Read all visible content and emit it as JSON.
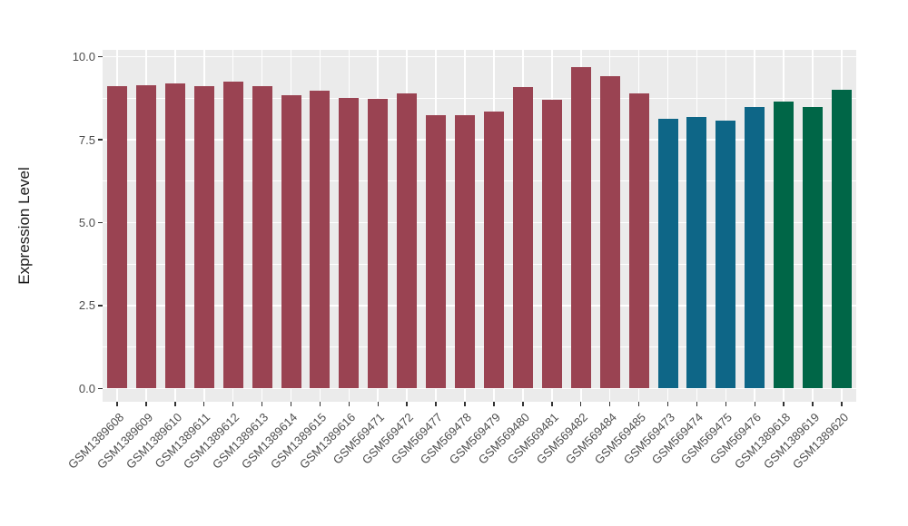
{
  "chart_data": {
    "type": "bar",
    "title": "",
    "ylabel": "Expression Level",
    "xlabel": "",
    "ylim": [
      -0.41,
      10.21
    ],
    "yticks": [
      0,
      2.5,
      5,
      7.5,
      10
    ],
    "ytick_labels": [
      "0.0",
      "2.5",
      "5.0",
      "7.5",
      "10.0"
    ],
    "minor_gridlines": [
      1.25,
      3.75,
      6.25,
      8.75
    ],
    "grid": "white major and minor horizontal lines, white vertical line at each category, on gray panel",
    "legend_position": "none",
    "categories": [
      "GSM1389608",
      "GSM1389609",
      "GSM1389610",
      "GSM1389611",
      "GSM1389612",
      "GSM1389613",
      "GSM1389614",
      "GSM1389615",
      "GSM1389616",
      "GSM569471",
      "GSM569472",
      "GSM569477",
      "GSM569478",
      "GSM569479",
      "GSM569480",
      "GSM569481",
      "GSM569482",
      "GSM569484",
      "GSM569485",
      "GSM569473",
      "GSM569474",
      "GSM569475",
      "GSM569476",
      "GSM1389618",
      "GSM1389619",
      "GSM1389620"
    ],
    "values": [
      9.13,
      9.14,
      9.2,
      9.11,
      9.24,
      9.13,
      8.84,
      8.98,
      8.75,
      8.72,
      8.91,
      8.25,
      8.25,
      8.36,
      9.09,
      8.71,
      9.69,
      9.41,
      8.89,
      8.13,
      8.18,
      8.07,
      8.48,
      8.64,
      8.5,
      9.0
    ],
    "groups": [
      "maroon",
      "maroon",
      "maroon",
      "maroon",
      "maroon",
      "maroon",
      "maroon",
      "maroon",
      "maroon",
      "maroon",
      "maroon",
      "maroon",
      "maroon",
      "maroon",
      "maroon",
      "maroon",
      "maroon",
      "maroon",
      "maroon",
      "teal",
      "teal",
      "teal",
      "teal",
      "green",
      "green",
      "green"
    ],
    "group_colors": {
      "maroon": "#9A4352",
      "teal": "#0E6687",
      "green": "#006647"
    }
  },
  "style": {
    "figure_background": "#FFFFFF",
    "panel_background": "#EBEBEB",
    "gridline_color": "#FFFFFF",
    "axis_text_color": "#4D4D4D",
    "axis_title_color": "#1A1A1A",
    "tick_mark_color": "#333333"
  }
}
